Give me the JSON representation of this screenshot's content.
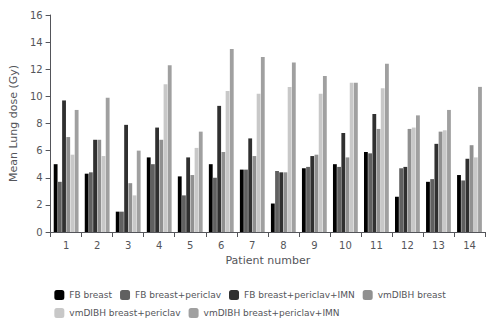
{
  "chart_data": {
    "type": "bar",
    "x_label": "Patient number",
    "y_label": "Mean Lung dose (Gy)",
    "categories": [
      "1",
      "2",
      "3",
      "4",
      "5",
      "6",
      "7",
      "8",
      "9",
      "10",
      "11",
      "12",
      "13",
      "14"
    ],
    "series": [
      {
        "name": "FB breast",
        "color": "#000000",
        "values": [
          5.0,
          4.3,
          1.5,
          5.5,
          4.1,
          5.0,
          4.6,
          2.1,
          4.7,
          5.0,
          5.9,
          2.6,
          3.7,
          4.2
        ]
      },
      {
        "name": "FB breast+periclav",
        "color": "#606060",
        "values": [
          3.7,
          4.4,
          1.5,
          5.0,
          2.7,
          4.0,
          4.6,
          4.5,
          4.8,
          4.8,
          5.8,
          4.7,
          3.9,
          3.8
        ]
      },
      {
        "name": "FB breast+periclav+IMN",
        "color": "#303030",
        "values": [
          9.7,
          6.8,
          7.9,
          7.7,
          5.5,
          9.3,
          6.9,
          4.4,
          5.6,
          7.3,
          8.7,
          4.8,
          6.5,
          5.4
        ]
      },
      {
        "name": "vmDIBH breast",
        "color": "#909090",
        "values": [
          7.0,
          6.8,
          3.6,
          6.8,
          4.2,
          5.9,
          5.6,
          4.4,
          5.7,
          5.5,
          7.6,
          7.6,
          7.4,
          6.4
        ]
      },
      {
        "name": "vmDIBH breast+periclav",
        "color": "#c8c8c8",
        "values": [
          5.7,
          5.6,
          2.7,
          10.9,
          6.2,
          10.4,
          10.2,
          10.7,
          10.2,
          11.0,
          10.6,
          7.7,
          7.5,
          5.5
        ]
      },
      {
        "name": "vmDIBH breast+periclav+IMN",
        "color": "#a0a0a0",
        "values": [
          9.0,
          9.9,
          6.0,
          12.3,
          7.4,
          13.5,
          12.9,
          12.5,
          11.5,
          11.0,
          12.4,
          8.6,
          9.0,
          10.7
        ]
      }
    ],
    "ylim": [
      0,
      16
    ],
    "yticks": [
      0,
      2,
      4,
      6,
      8,
      10,
      12,
      14,
      16
    ],
    "grid": false,
    "legend": "bottom"
  }
}
